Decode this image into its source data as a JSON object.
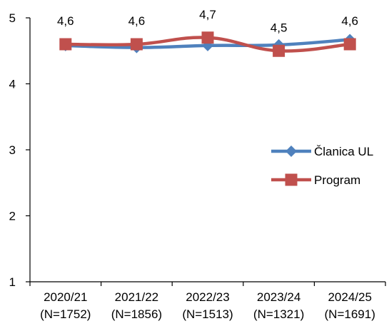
{
  "chart_data": {
    "type": "line",
    "categories": [
      "2020/21",
      "2021/22",
      "2022/23",
      "2023/24",
      "2024/25"
    ],
    "category_notes": [
      "(N=1752)",
      "(N=1856)",
      "(N=1513)",
      "(N=1321)",
      "(N=1691)"
    ],
    "ylim": [
      1,
      5
    ],
    "yticks": [
      1,
      2,
      3,
      4,
      5
    ],
    "grid": false,
    "legend": "right",
    "series": [
      {
        "name": "Članica UL",
        "values": [
          4.58,
          4.55,
          4.58,
          4.59,
          4.67
        ],
        "color": "#4F81BD",
        "marker": "diamond",
        "data_labels": [
          "",
          "",
          "",
          "",
          ""
        ]
      },
      {
        "name": "Program",
        "values": [
          4.6,
          4.6,
          4.7,
          4.5,
          4.6
        ],
        "color": "#C0504D",
        "marker": "square",
        "data_labels": [
          "4,6",
          "4,6",
          "4,7",
          "4,5",
          "4,6"
        ]
      }
    ]
  }
}
